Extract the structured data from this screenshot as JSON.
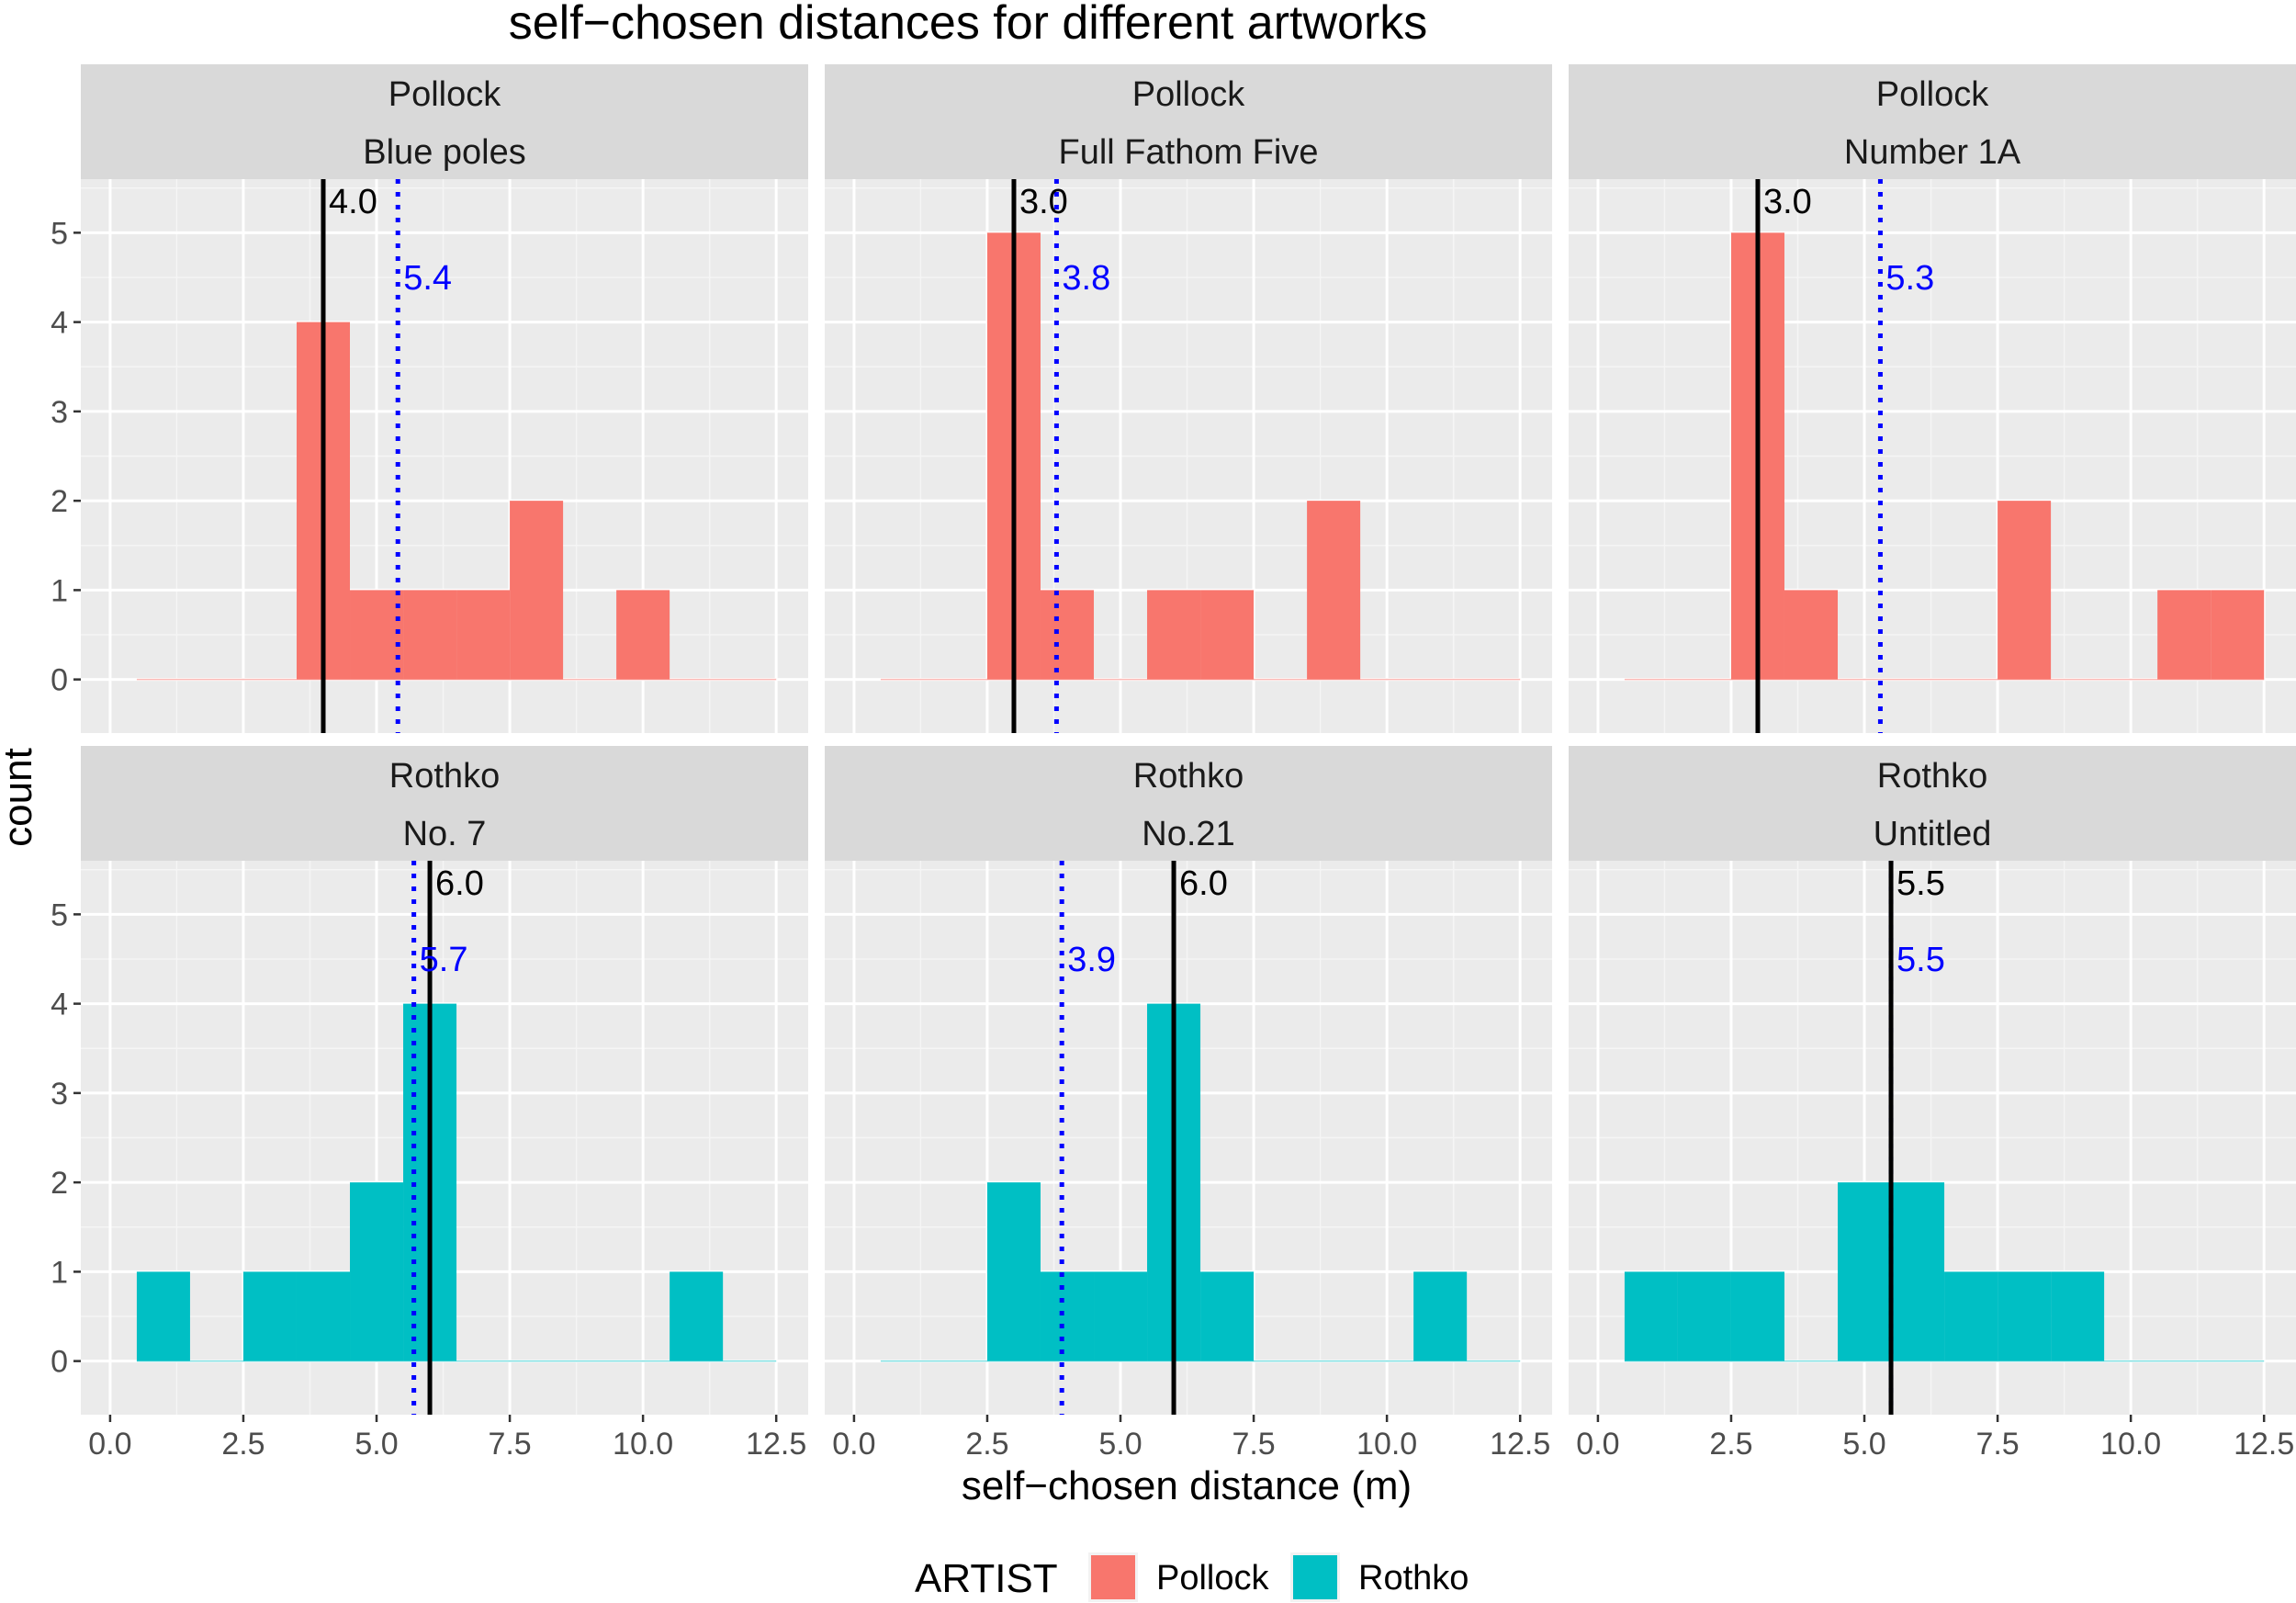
{
  "chart_data": {
    "type": "bar",
    "title": "self−chosen distances for different artworks",
    "xlabel": "self−chosen distance (m)",
    "ylabel": "count",
    "xlim": [
      0,
      12.5
    ],
    "ylim": [
      0,
      5
    ],
    "x_ticks": [
      0,
      2.5,
      5,
      7.5,
      10,
      12.5
    ],
    "x_tick_labels": [
      "0.0",
      "2.5",
      "5.0",
      "7.5",
      "10.0",
      "12.5"
    ],
    "y_ticks": [
      0,
      1,
      2,
      3,
      4,
      5
    ],
    "y_tick_labels": [
      "0",
      "1",
      "2",
      "3",
      "4",
      "5"
    ],
    "bin_centers": [
      1,
      2,
      3,
      4,
      5,
      6,
      7,
      8,
      9,
      10,
      11,
      12
    ],
    "grid": true,
    "legend": {
      "title": "ARTIST",
      "position": "bottom",
      "items": [
        {
          "name": "Pollock",
          "color": "#F8766D"
        },
        {
          "name": "Rothko",
          "color": "#00BFC4"
        }
      ]
    },
    "median_line_color": "#000000",
    "mean_line_color": "#0000FF",
    "panels": [
      {
        "artist": "Pollock",
        "artwork": "Blue poles",
        "color": "#F8766D",
        "counts": [
          0,
          0,
          0,
          4,
          1,
          1,
          1,
          2,
          0,
          1,
          0,
          0
        ],
        "median": 4.0,
        "median_label": "4.0",
        "mean": 5.4,
        "mean_label": "5.4"
      },
      {
        "artist": "Pollock",
        "artwork": "Full Fathom Five",
        "color": "#F8766D",
        "counts": [
          0,
          0,
          5,
          1,
          0,
          1,
          1,
          0,
          2,
          0,
          0,
          0
        ],
        "median": 3.0,
        "median_label": "3.0",
        "mean": 3.8,
        "mean_label": "3.8"
      },
      {
        "artist": "Pollock",
        "artwork": "Number 1A",
        "color": "#F8766D",
        "counts": [
          0,
          0,
          5,
          1,
          0,
          0,
          0,
          2,
          0,
          0,
          1,
          1
        ],
        "median": 3.0,
        "median_label": "3.0",
        "mean": 5.3,
        "mean_label": "5.3"
      },
      {
        "artist": "Rothko",
        "artwork": "No. 7",
        "color": "#00BFC4",
        "counts": [
          1,
          0,
          1,
          1,
          2,
          4,
          0,
          0,
          0,
          0,
          1,
          0
        ],
        "median": 6.0,
        "median_label": "6.0",
        "mean": 5.7,
        "mean_label": "5.7"
      },
      {
        "artist": "Rothko",
        "artwork": "No.21",
        "color": "#00BFC4",
        "counts": [
          0,
          0,
          2,
          1,
          1,
          4,
          1,
          0,
          0,
          0,
          1,
          0
        ],
        "median": 6.0,
        "median_label": "6.0",
        "mean": 3.9,
        "mean_label": "3.9"
      },
      {
        "artist": "Rothko",
        "artwork": "Untitled",
        "color": "#00BFC4",
        "counts": [
          1,
          1,
          1,
          0,
          2,
          2,
          1,
          1,
          1,
          0,
          0,
          0
        ],
        "median": 5.5,
        "median_label": "5.5",
        "mean": 5.5,
        "mean_label": "5.5"
      }
    ]
  }
}
